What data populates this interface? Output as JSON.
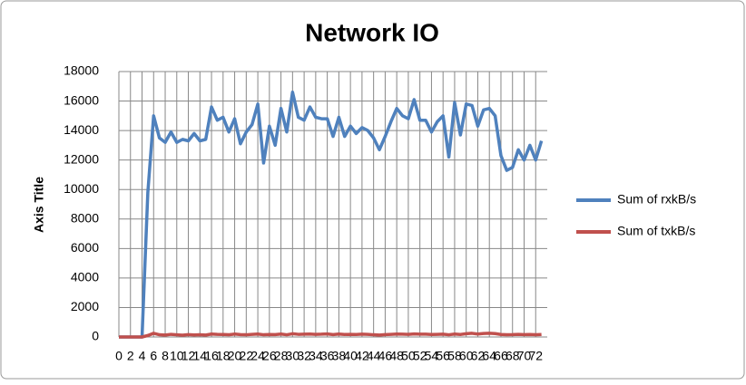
{
  "chart_data": {
    "type": "line",
    "title": "Network IO",
    "y_label": "Axis Title",
    "x": [
      0,
      1,
      2,
      3,
      4,
      5,
      6,
      7,
      8,
      9,
      10,
      11,
      12,
      13,
      14,
      15,
      16,
      17,
      18,
      19,
      20,
      21,
      22,
      23,
      24,
      25,
      26,
      27,
      28,
      29,
      30,
      31,
      32,
      33,
      34,
      35,
      36,
      37,
      38,
      39,
      40,
      41,
      42,
      43,
      44,
      45,
      46,
      47,
      48,
      49,
      50,
      51,
      52,
      53,
      54,
      55,
      56,
      57,
      58,
      59,
      60,
      61,
      62,
      63,
      64,
      65,
      66,
      67,
      68,
      69,
      70,
      71,
      72,
      73
    ],
    "series": [
      {
        "name": "Sum of rxkB/s",
        "color": "#4f81bd",
        "values": [
          0,
          0,
          0,
          0,
          0,
          9800,
          15000,
          13500,
          13200,
          13900,
          13200,
          13400,
          13300,
          13800,
          13300,
          13400,
          15600,
          14700,
          14900,
          13900,
          14800,
          13100,
          13900,
          14400,
          15800,
          11800,
          14300,
          13000,
          15500,
          13900,
          16600,
          14900,
          14700,
          15600,
          14900,
          14800,
          14800,
          13600,
          14900,
          13600,
          14300,
          13800,
          14200,
          14000,
          13500,
          12700,
          13600,
          14600,
          15500,
          15000,
          14800,
          16100,
          14700,
          14700,
          13900,
          14600,
          15000,
          12200,
          15900,
          13700,
          15800,
          15700,
          14300,
          15400,
          15500,
          15000,
          12300,
          11300,
          11500,
          12700,
          12000,
          13000,
          12000,
          13300
        ]
      },
      {
        "name": "Sum of txkB/s",
        "color": "#c0504d",
        "values": [
          0,
          0,
          0,
          0,
          0,
          100,
          250,
          150,
          130,
          180,
          150,
          120,
          160,
          140,
          150,
          130,
          200,
          180,
          170,
          150,
          200,
          160,
          150,
          180,
          200,
          150,
          170,
          160,
          200,
          150,
          220,
          180,
          190,
          200,
          180,
          190,
          210,
          160,
          200,
          170,
          180,
          170,
          190,
          180,
          150,
          130,
          160,
          180,
          200,
          190,
          180,
          210,
          190,
          190,
          170,
          180,
          190,
          150,
          200,
          170,
          220,
          250,
          200,
          240,
          250,
          230,
          170,
          150,
          160,
          180,
          160,
          170,
          150,
          170
        ]
      }
    ],
    "xlim": [
      0,
      74
    ],
    "xticks": [
      0,
      2,
      4,
      6,
      8,
      10,
      12,
      14,
      16,
      18,
      20,
      22,
      24,
      26,
      28,
      30,
      32,
      34,
      36,
      38,
      40,
      42,
      44,
      46,
      48,
      50,
      52,
      54,
      56,
      58,
      60,
      62,
      64,
      66,
      68,
      70,
      72
    ],
    "ylim": [
      0,
      18000
    ],
    "yticks": [
      0,
      2000,
      4000,
      6000,
      8000,
      10000,
      12000,
      14000,
      16000,
      18000
    ],
    "grid": true,
    "legend": "right"
  }
}
